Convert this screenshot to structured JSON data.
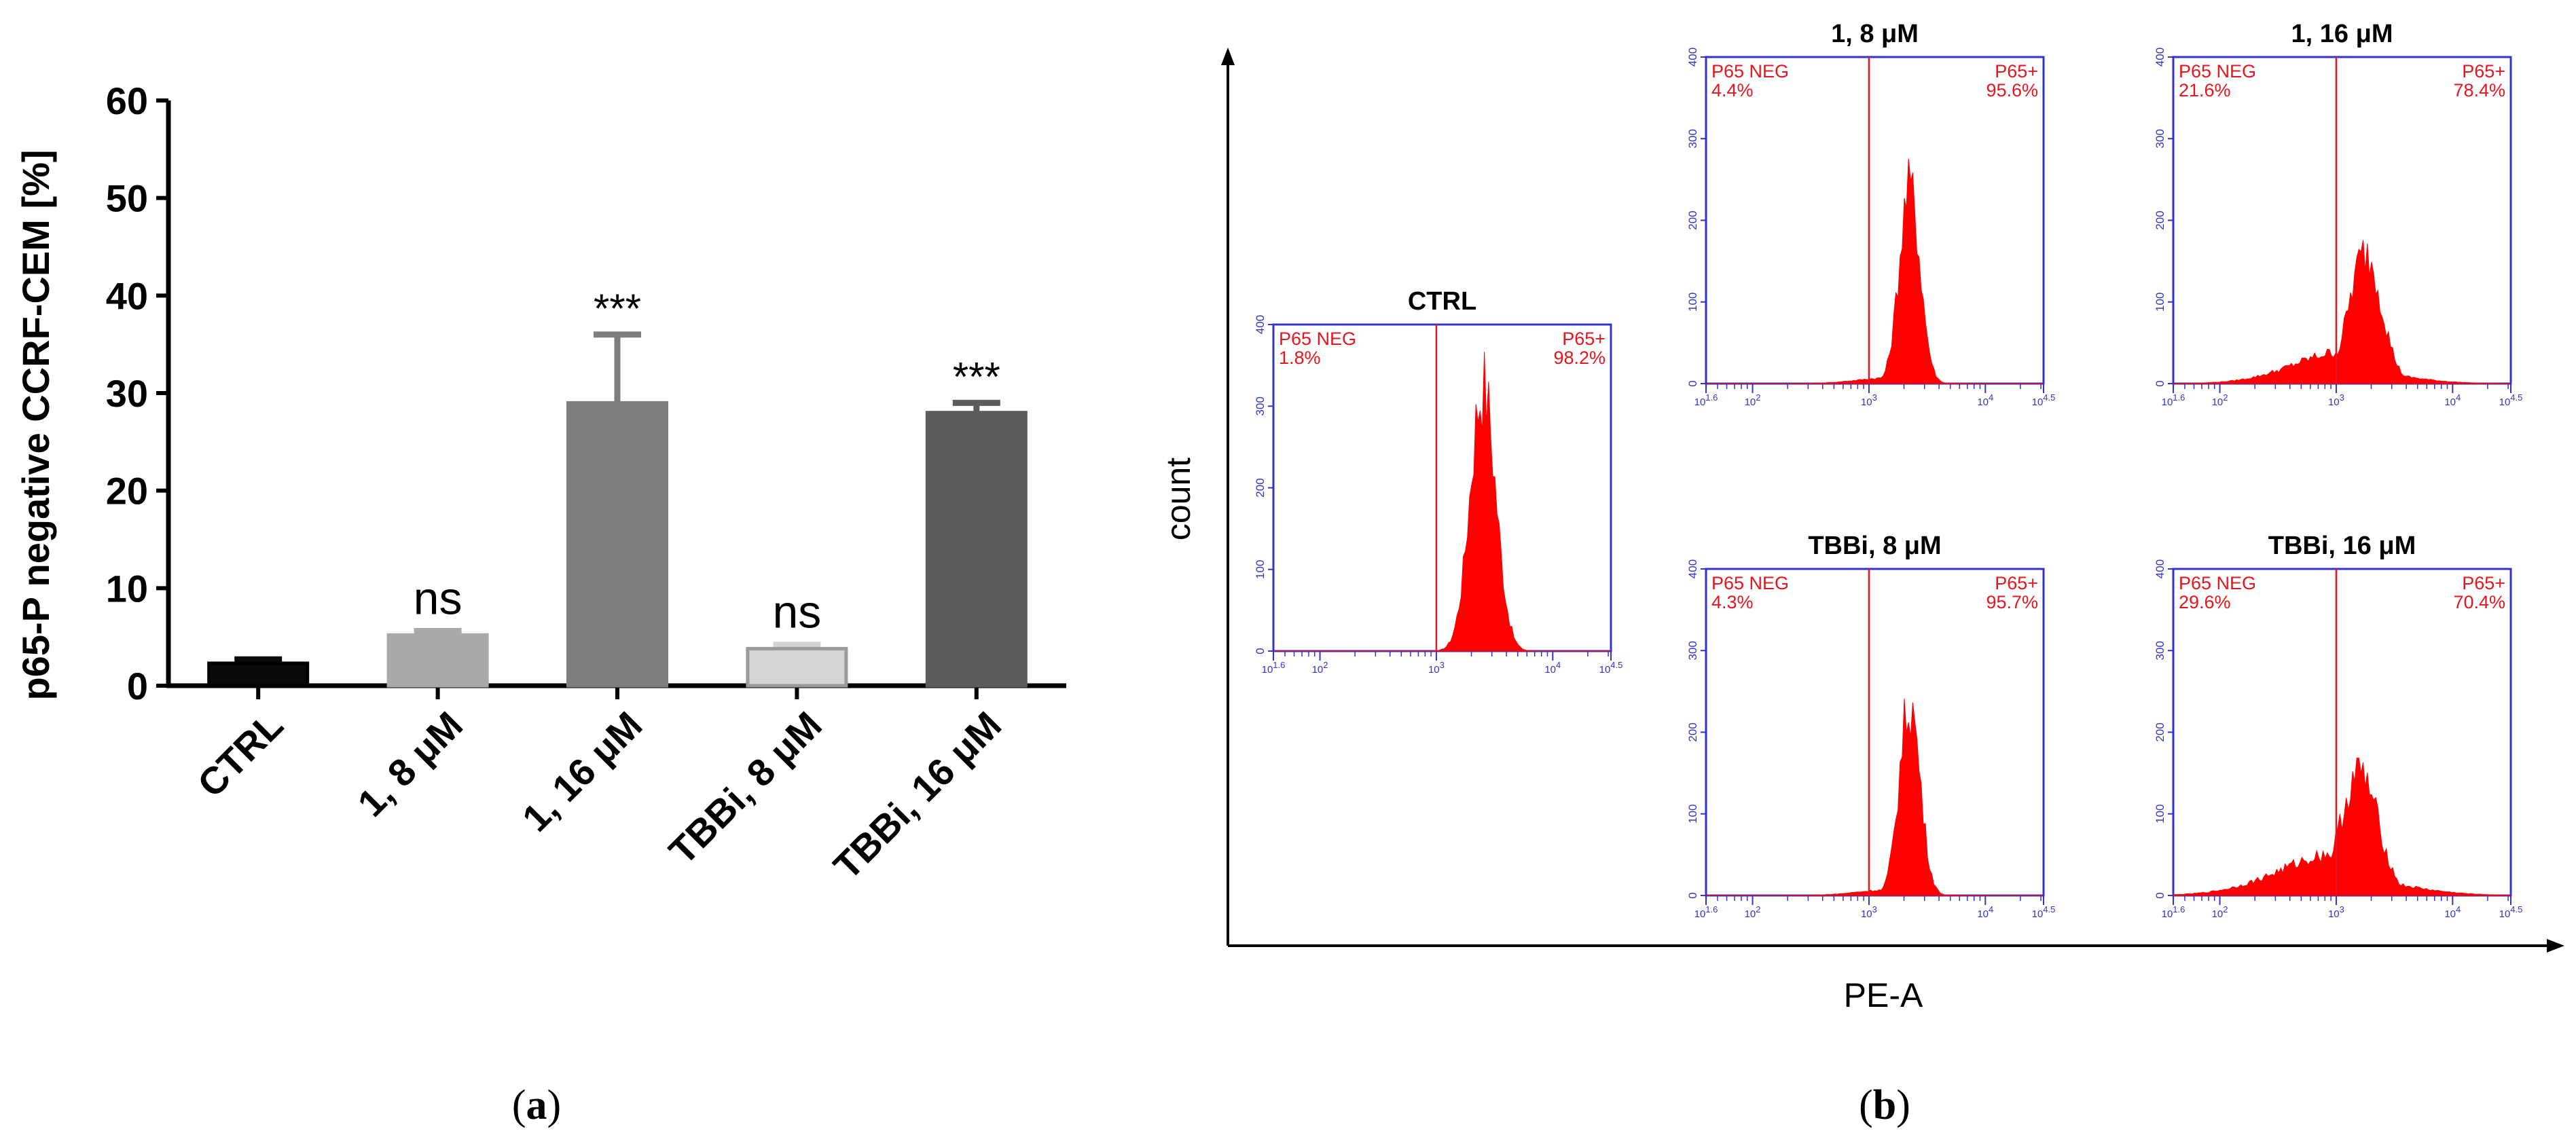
{
  "chart_data": [
    {
      "type": "bar",
      "id": "panel-a",
      "panel_label": {
        "open": "(",
        "letter": "a",
        "close": ")"
      },
      "title": "",
      "xlabel": "",
      "ylabel": "p65-P negative CCRF-CEM [%]",
      "ylim": [
        0,
        60
      ],
      "yticks": [
        "0",
        "10",
        "20",
        "30",
        "40",
        "50",
        "60"
      ],
      "grid": false,
      "categories": [
        "CTRL",
        "1, 8 μM",
        "1, 16 μM",
        "TBBi, 8 μM",
        "TBBi, 16 μM"
      ],
      "values": [
        2.3,
        5.2,
        29.0,
        3.8,
        28.0
      ],
      "errors": [
        0.4,
        0.4,
        7.0,
        0.4,
        1.0
      ],
      "bar_colors": [
        "#0a0a0a",
        "#a9a9a9",
        "#7e7e7e",
        "#d4d4d4",
        "#5c5c5c"
      ],
      "bar_edge_colors": [
        "#000000",
        "#a9a9a9",
        "#7e7e7e",
        "#9a9a9a",
        "#5c5c5c"
      ],
      "annotations": [
        "",
        "ns",
        "***",
        "ns",
        "***"
      ]
    },
    {
      "type": "histogram",
      "id": "panel-b",
      "panel_label": {
        "open": "(",
        "letter": "b",
        "close": ")"
      },
      "xlabel": "PE-A",
      "ylabel": "count",
      "x_scale": "log",
      "xlim_log10": [
        1.6,
        4.5
      ],
      "ylim": [
        0,
        400
      ],
      "yticks": [
        "0",
        "100",
        "200",
        "300",
        "400"
      ],
      "xtick_labels": [
        "10^1.6",
        "10^2",
        "10^3",
        "10^4",
        "10^4.5"
      ],
      "gate_log10": 3.0,
      "gate_left_label": "P65 NEG",
      "gate_right_label": "P65+",
      "line_color": "#e8141e",
      "fill_color": "#ff0000",
      "frame_color": "#3333cc",
      "subplots": [
        {
          "title": "CTRL",
          "neg_pct": "1.8%",
          "pos_pct": "98.2%",
          "peak_log10": 3.4,
          "peak_count": 325,
          "sigma_log10": 0.11,
          "left_tail": 0.0
        },
        {
          "title": "1, 8 μM",
          "neg_pct": "4.4%",
          "pos_pct": "95.6%",
          "peak_log10": 3.35,
          "peak_count": 240,
          "sigma_log10": 0.09,
          "left_tail": 0.03
        },
        {
          "title": "1, 16 μM",
          "neg_pct": "21.6%",
          "pos_pct": "78.4%",
          "peak_log10": 3.25,
          "peak_count": 160,
          "sigma_log10": 0.14,
          "left_tail": 0.25
        },
        {
          "title": "TBBi, 8 μM",
          "neg_pct": "4.3%",
          "pos_pct": "95.7%",
          "peak_log10": 3.35,
          "peak_count": 235,
          "sigma_log10": 0.09,
          "left_tail": 0.03
        },
        {
          "title": "TBBi, 16 μM",
          "neg_pct": "29.6%",
          "pos_pct": "70.4%",
          "peak_log10": 3.2,
          "peak_count": 150,
          "sigma_log10": 0.16,
          "left_tail": 0.35
        }
      ]
    }
  ]
}
